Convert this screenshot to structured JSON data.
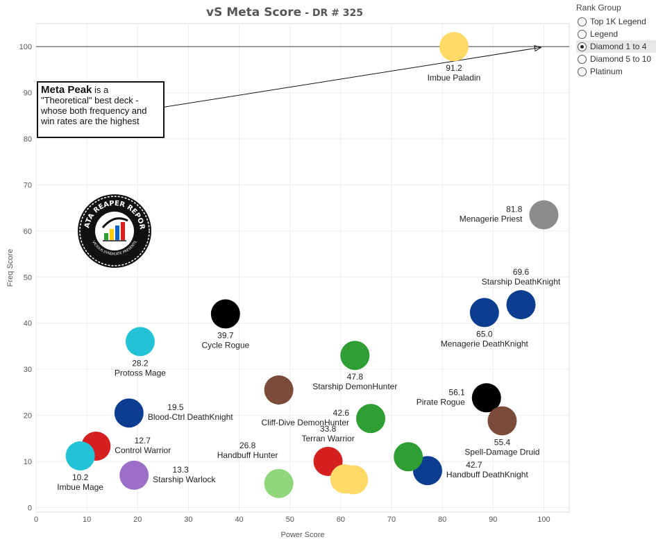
{
  "title": {
    "main": "vS Meta Score",
    "sub": "- DR # 325"
  },
  "legend": {
    "title": "Rank Group",
    "items": [
      {
        "label": "Top 1K Legend",
        "selected": false
      },
      {
        "label": "Legend",
        "selected": false
      },
      {
        "label": "Diamond 1 to 4",
        "selected": true
      },
      {
        "label": "Diamond 5 to 10",
        "selected": false
      },
      {
        "label": "Platinum",
        "selected": false
      }
    ]
  },
  "annotation": {
    "bold": "Meta Peak",
    "text": " is a \"Theoretical\" best deck - whose both frequency and win rates are the highest",
    "target": {
      "x": 100,
      "y": 100
    }
  },
  "logo": {
    "text_top": "DATA REAPER REPORT",
    "text_bottom": "VICIOUS SYNDICATE PRESENTS"
  },
  "chart_data": {
    "type": "scatter",
    "title": "vS Meta Score - DR # 325",
    "xlabel": "Power Score",
    "ylabel": "Freq Score",
    "xlim": [
      0,
      105
    ],
    "ylim": [
      -1,
      105
    ],
    "xticks": [
      0,
      10,
      20,
      30,
      40,
      50,
      60,
      70,
      80,
      90,
      100
    ],
    "yticks": [
      0,
      10,
      20,
      30,
      40,
      50,
      60,
      70,
      80,
      90,
      100
    ],
    "grid": true,
    "reference_line_y": 100,
    "points": [
      {
        "name": "Imbue Paladin",
        "score": "91.2",
        "x": 82.3,
        "y": 100,
        "color": "#ffd966",
        "label_pos": "below"
      },
      {
        "name": "Menagerie Priest",
        "score": "81.8",
        "x": 100,
        "y": 63.5,
        "color": "#8c8c8c",
        "label_pos": "left"
      },
      {
        "name": "Starship DeathKnight",
        "score": "69.6",
        "x": 95.5,
        "y": 44,
        "color": "#0b3d91",
        "label_pos": "above"
      },
      {
        "name": "Menagerie DeathKnight",
        "score": "65.0",
        "x": 88.3,
        "y": 42.3,
        "color": "#0b3d91",
        "label_pos": "below"
      },
      {
        "name": "Cycle Rogue",
        "score": "39.7",
        "x": 37.3,
        "y": 42,
        "color": "#000000",
        "label_pos": "below"
      },
      {
        "name": "Protoss Mage",
        "score": "28.2",
        "x": 20.5,
        "y": 36,
        "color": "#22c3d6",
        "label_pos": "below"
      },
      {
        "name": "Starship DemonHunter",
        "score": "47.8",
        "x": 62.8,
        "y": 33,
        "color": "#2e9e35",
        "label_pos": "below"
      },
      {
        "name": "Pirate Rogue",
        "score": "56.1",
        "x": 88.7,
        "y": 23.8,
        "color": "#000000",
        "label_pos": "left"
      },
      {
        "name": "Spell-Damage Druid",
        "score": "55.4",
        "x": 91.8,
        "y": 18.8,
        "color": "#7b4b3a",
        "label_pos": "below"
      },
      {
        "name": "Blood-Ctrl DeathKnight",
        "score": "19.5",
        "x": 18.3,
        "y": 20.5,
        "color": "#0b3d91",
        "label_pos": "right"
      },
      {
        "name": "Cliff-Dive DemonHunter",
        "score": "42.6",
        "x": 65.9,
        "y": 19.3,
        "color": "#2e9e35",
        "label_pos": "left"
      },
      {
        "name": "Terran Warrior",
        "score": "33.8",
        "x": 57.5,
        "y": 10,
        "color": "#d62020",
        "label_pos": "above"
      },
      {
        "name": "Handbuff Hunter",
        "score": "26.8",
        "x": 47.8,
        "y": 25.5,
        "color": "#7b4b3a",
        "label_pos": "handbuff"
      },
      {
        "name": "Control Warrior",
        "score": "12.7",
        "x": 11.8,
        "y": 13.3,
        "color": "#d62020",
        "label_pos": "right"
      },
      {
        "name": "Imbue Mage",
        "score": "10.2",
        "x": 8.7,
        "y": 11.2,
        "color": "#22c3d6",
        "label_pos": "below"
      },
      {
        "name": "Starship Warlock",
        "score": "13.3",
        "x": 19.3,
        "y": 7,
        "color": "#9b6fc8",
        "label_pos": "right"
      },
      {
        "name": "Handbuff DeathKnight",
        "score": "42.7",
        "x": 77.1,
        "y": 8,
        "color": "#0b3d91",
        "label_pos": "right"
      },
      {
        "name": "",
        "score": "",
        "x": 73.3,
        "y": 11,
        "color": "#2e9e35",
        "label_pos": "none"
      },
      {
        "name": "",
        "score": "",
        "x": 47.8,
        "y": 5.2,
        "color": "#90d67d",
        "label_pos": "none"
      },
      {
        "name": "",
        "score": "",
        "x": 60.8,
        "y": 6.2,
        "color": "#ffd966",
        "label_pos": "none"
      },
      {
        "name": "",
        "score": "",
        "x": 62.5,
        "y": 6,
        "color": "#ffd966",
        "label_pos": "none"
      }
    ]
  }
}
